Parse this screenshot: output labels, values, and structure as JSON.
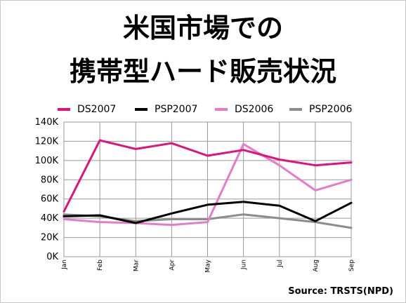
{
  "title_line1": "米国市場での",
  "title_line2": "携帯型ハード販売状況",
  "source": "Source: TRSTS(NPD)",
  "chart_data": {
    "type": "line",
    "categories": [
      "Jan",
      "Feb",
      "Mar",
      "Apr",
      "May",
      "Jun",
      "Jul",
      "Aug",
      "Sep"
    ],
    "y_ticks": [
      "0K",
      "20K",
      "40K",
      "60K",
      "80K",
      "100K",
      "120K",
      "140K"
    ],
    "ylim": [
      0,
      140000
    ],
    "grid": true,
    "legend_position": "top",
    "series": [
      {
        "name": "DS2007",
        "color": "#e0137a",
        "values": [
          47000,
          121000,
          112000,
          118000,
          105000,
          111000,
          101000,
          95000,
          98000
        ]
      },
      {
        "name": "PSP2007",
        "color": "#000000",
        "values": [
          42000,
          43000,
          35000,
          45000,
          54000,
          57000,
          53000,
          37000,
          56000
        ]
      },
      {
        "name": "DS2006",
        "color": "#e77ac9",
        "values": [
          39000,
          36000,
          35000,
          33000,
          36000,
          117000,
          95000,
          69000,
          80000
        ]
      },
      {
        "name": "PSP2006",
        "color": "#8c8c8c",
        "values": [
          44000,
          42000,
          37000,
          39000,
          39000,
          44000,
          40000,
          36000,
          30000
        ]
      }
    ]
  }
}
